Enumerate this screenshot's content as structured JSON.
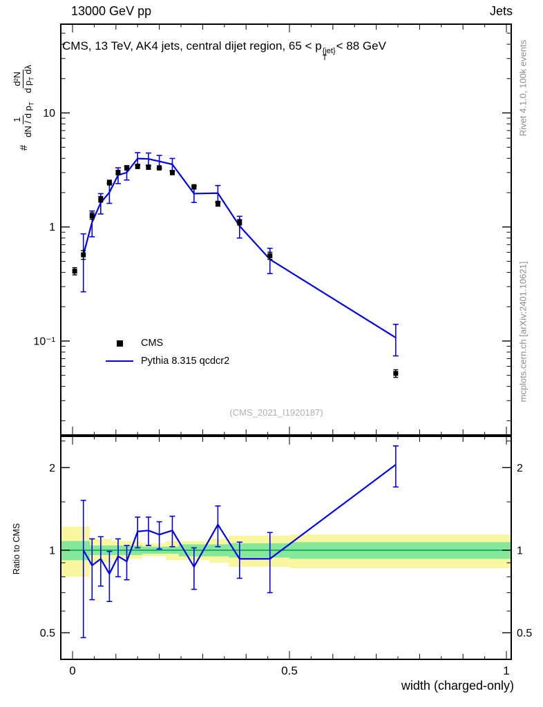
{
  "header": {
    "left": "13000 GeV pp",
    "right": "Jets"
  },
  "plot": {
    "title_prefix": "CMS, 13 TeV, AK4 jets, central dijet region, 65 < p",
    "title_sup": "{jet}",
    "title_sub": "T",
    "title_suffix": "< 88 GeV",
    "watermark": "(CMS_2021_I1920187)",
    "xaxis_label": "width (charged-only)",
    "ratio_ylabel": "Ratio to CMS",
    "rivet_note": "Rivet 4.1.0, 100k events",
    "mcplots_note": "mcplots.cern.ch [arXiv:2401.10621]",
    "ylabel": {
      "prefix": "#",
      "frac1_num": "1",
      "frac1_den": "dN / d p",
      "frac1_den_sub": "T",
      "frac2_num": "d²N",
      "frac2_den_a": "d p",
      "frac2_den_sub": "T",
      "frac2_den_b": " dλ"
    },
    "legend": {
      "cms": "CMS",
      "pythia": "Pythia 8.315 qcdcr2"
    }
  },
  "chart_data": {
    "type": "line",
    "title": "CMS, 13 TeV, AK4 jets, central dijet region, 65 < pT{jet} < 88 GeV",
    "xlabel": "width (charged-only)",
    "ylabel": "# 1/(dN/dpT) d²N/(dpT dλ)",
    "legend_position": "left-middle",
    "grid": false,
    "main": {
      "yscale": "log",
      "ylim": [
        0.015,
        60
      ],
      "xlim": [
        0,
        1
      ],
      "yticks": [
        {
          "v": 10,
          "label": "10"
        },
        {
          "v": 1,
          "label": "1"
        },
        {
          "v": 0.1,
          "label": "10⁻¹"
        }
      ],
      "series": [
        {
          "name": "Pythia 8.315 qcdcr2",
          "type": "line",
          "color": "#0000e6",
          "x": [
            0.025,
            0.045,
            0.065,
            0.085,
            0.105,
            0.125,
            0.15,
            0.175,
            0.2,
            0.23,
            0.28,
            0.335,
            0.385,
            0.455,
            0.745
          ],
          "y": [
            0.57,
            1.1,
            1.63,
            2.01,
            2.85,
            3.0,
            3.98,
            3.95,
            3.76,
            3.54,
            1.96,
            1.98,
            1.02,
            0.52,
            0.107
          ],
          "err": [
            0.3,
            0.28,
            0.33,
            0.4,
            0.45,
            0.42,
            0.5,
            0.5,
            0.48,
            0.45,
            0.32,
            0.33,
            0.22,
            0.13,
            0.033
          ]
        },
        {
          "name": "CMS",
          "type": "points",
          "color": "#000000",
          "x": [
            0.005,
            0.025,
            0.045,
            0.065,
            0.085,
            0.105,
            0.125,
            0.15,
            0.175,
            0.2,
            0.23,
            0.28,
            0.335,
            0.385,
            0.455,
            0.745
          ],
          "y": [
            0.41,
            0.57,
            1.25,
            1.75,
            2.45,
            3.0,
            3.3,
            3.4,
            3.35,
            3.3,
            3.0,
            2.25,
            1.6,
            1.1,
            0.56,
            0.052
          ],
          "err": [
            0.03,
            0.05,
            0.08,
            0.1,
            0.12,
            0.14,
            0.15,
            0.15,
            0.15,
            0.14,
            0.13,
            0.1,
            0.08,
            0.06,
            0.04,
            0.004
          ]
        }
      ]
    },
    "ratio": {
      "yscale": "log",
      "ylim": [
        0.4,
        2.6
      ],
      "yticks": [
        {
          "v": 2,
          "label": "2"
        },
        {
          "v": 1,
          "label": "1"
        },
        {
          "v": 0.5,
          "label": "0.5"
        }
      ],
      "yminor": [
        0.6,
        0.7,
        0.8,
        0.9,
        1.5,
        2.5
      ],
      "xticks": [
        {
          "v": 0,
          "label": "0"
        },
        {
          "v": 0.5,
          "label": "0.5"
        },
        {
          "v": 1,
          "label": "1"
        }
      ],
      "ref_line": {
        "v": 1,
        "color": "#009a4e"
      },
      "bands": [
        {
          "name": "yellow",
          "color": "#f9f6a0",
          "segments": [
            {
              "x0": 0,
              "x1": 0.04,
              "lo": 0.8,
              "hi": 1.22
            },
            {
              "x0": 0.04,
              "x1": 0.09,
              "lo": 0.9,
              "hi": 1.1
            },
            {
              "x0": 0.09,
              "x1": 0.16,
              "lo": 0.93,
              "hi": 1.08
            },
            {
              "x0": 0.16,
              "x1": 0.215,
              "lo": 0.95,
              "hi": 1.06
            },
            {
              "x0": 0.215,
              "x1": 0.315,
              "lo": 0.92,
              "hi": 1.08
            },
            {
              "x0": 0.315,
              "x1": 0.36,
              "lo": 0.9,
              "hi": 1.1
            },
            {
              "x0": 0.36,
              "x1": 0.5,
              "lo": 0.87,
              "hi": 1.13
            },
            {
              "x0": 0.5,
              "x1": 1.0,
              "lo": 0.86,
              "hi": 1.14
            }
          ]
        },
        {
          "name": "green",
          "color": "#84e79a",
          "segments": [
            {
              "x0": 0,
              "x1": 0.04,
              "lo": 0.92,
              "hi": 1.08
            },
            {
              "x0": 0.04,
              "x1": 0.16,
              "lo": 0.96,
              "hi": 1.04
            },
            {
              "x0": 0.16,
              "x1": 0.245,
              "lo": 0.97,
              "hi": 1.03
            },
            {
              "x0": 0.245,
              "x1": 0.36,
              "lo": 0.95,
              "hi": 1.05
            },
            {
              "x0": 0.36,
              "x1": 0.5,
              "lo": 0.94,
              "hi": 1.06
            },
            {
              "x0": 0.5,
              "x1": 1.0,
              "lo": 0.93,
              "hi": 1.07
            }
          ]
        }
      ],
      "line": {
        "name": "Pythia 8.315 qcdcr2 / CMS",
        "color": "#0000e6",
        "x": [
          0.025,
          0.045,
          0.065,
          0.085,
          0.105,
          0.125,
          0.15,
          0.175,
          0.2,
          0.23,
          0.28,
          0.335,
          0.385,
          0.455,
          0.745
        ],
        "y": [
          1.0,
          0.88,
          0.93,
          0.82,
          0.95,
          0.91,
          1.17,
          1.18,
          1.14,
          1.18,
          0.87,
          1.24,
          0.93,
          0.93,
          2.05
        ],
        "err": [
          0.52,
          0.22,
          0.19,
          0.17,
          0.15,
          0.13,
          0.15,
          0.14,
          0.13,
          0.15,
          0.15,
          0.21,
          0.14,
          0.23,
          0.35
        ]
      }
    }
  }
}
